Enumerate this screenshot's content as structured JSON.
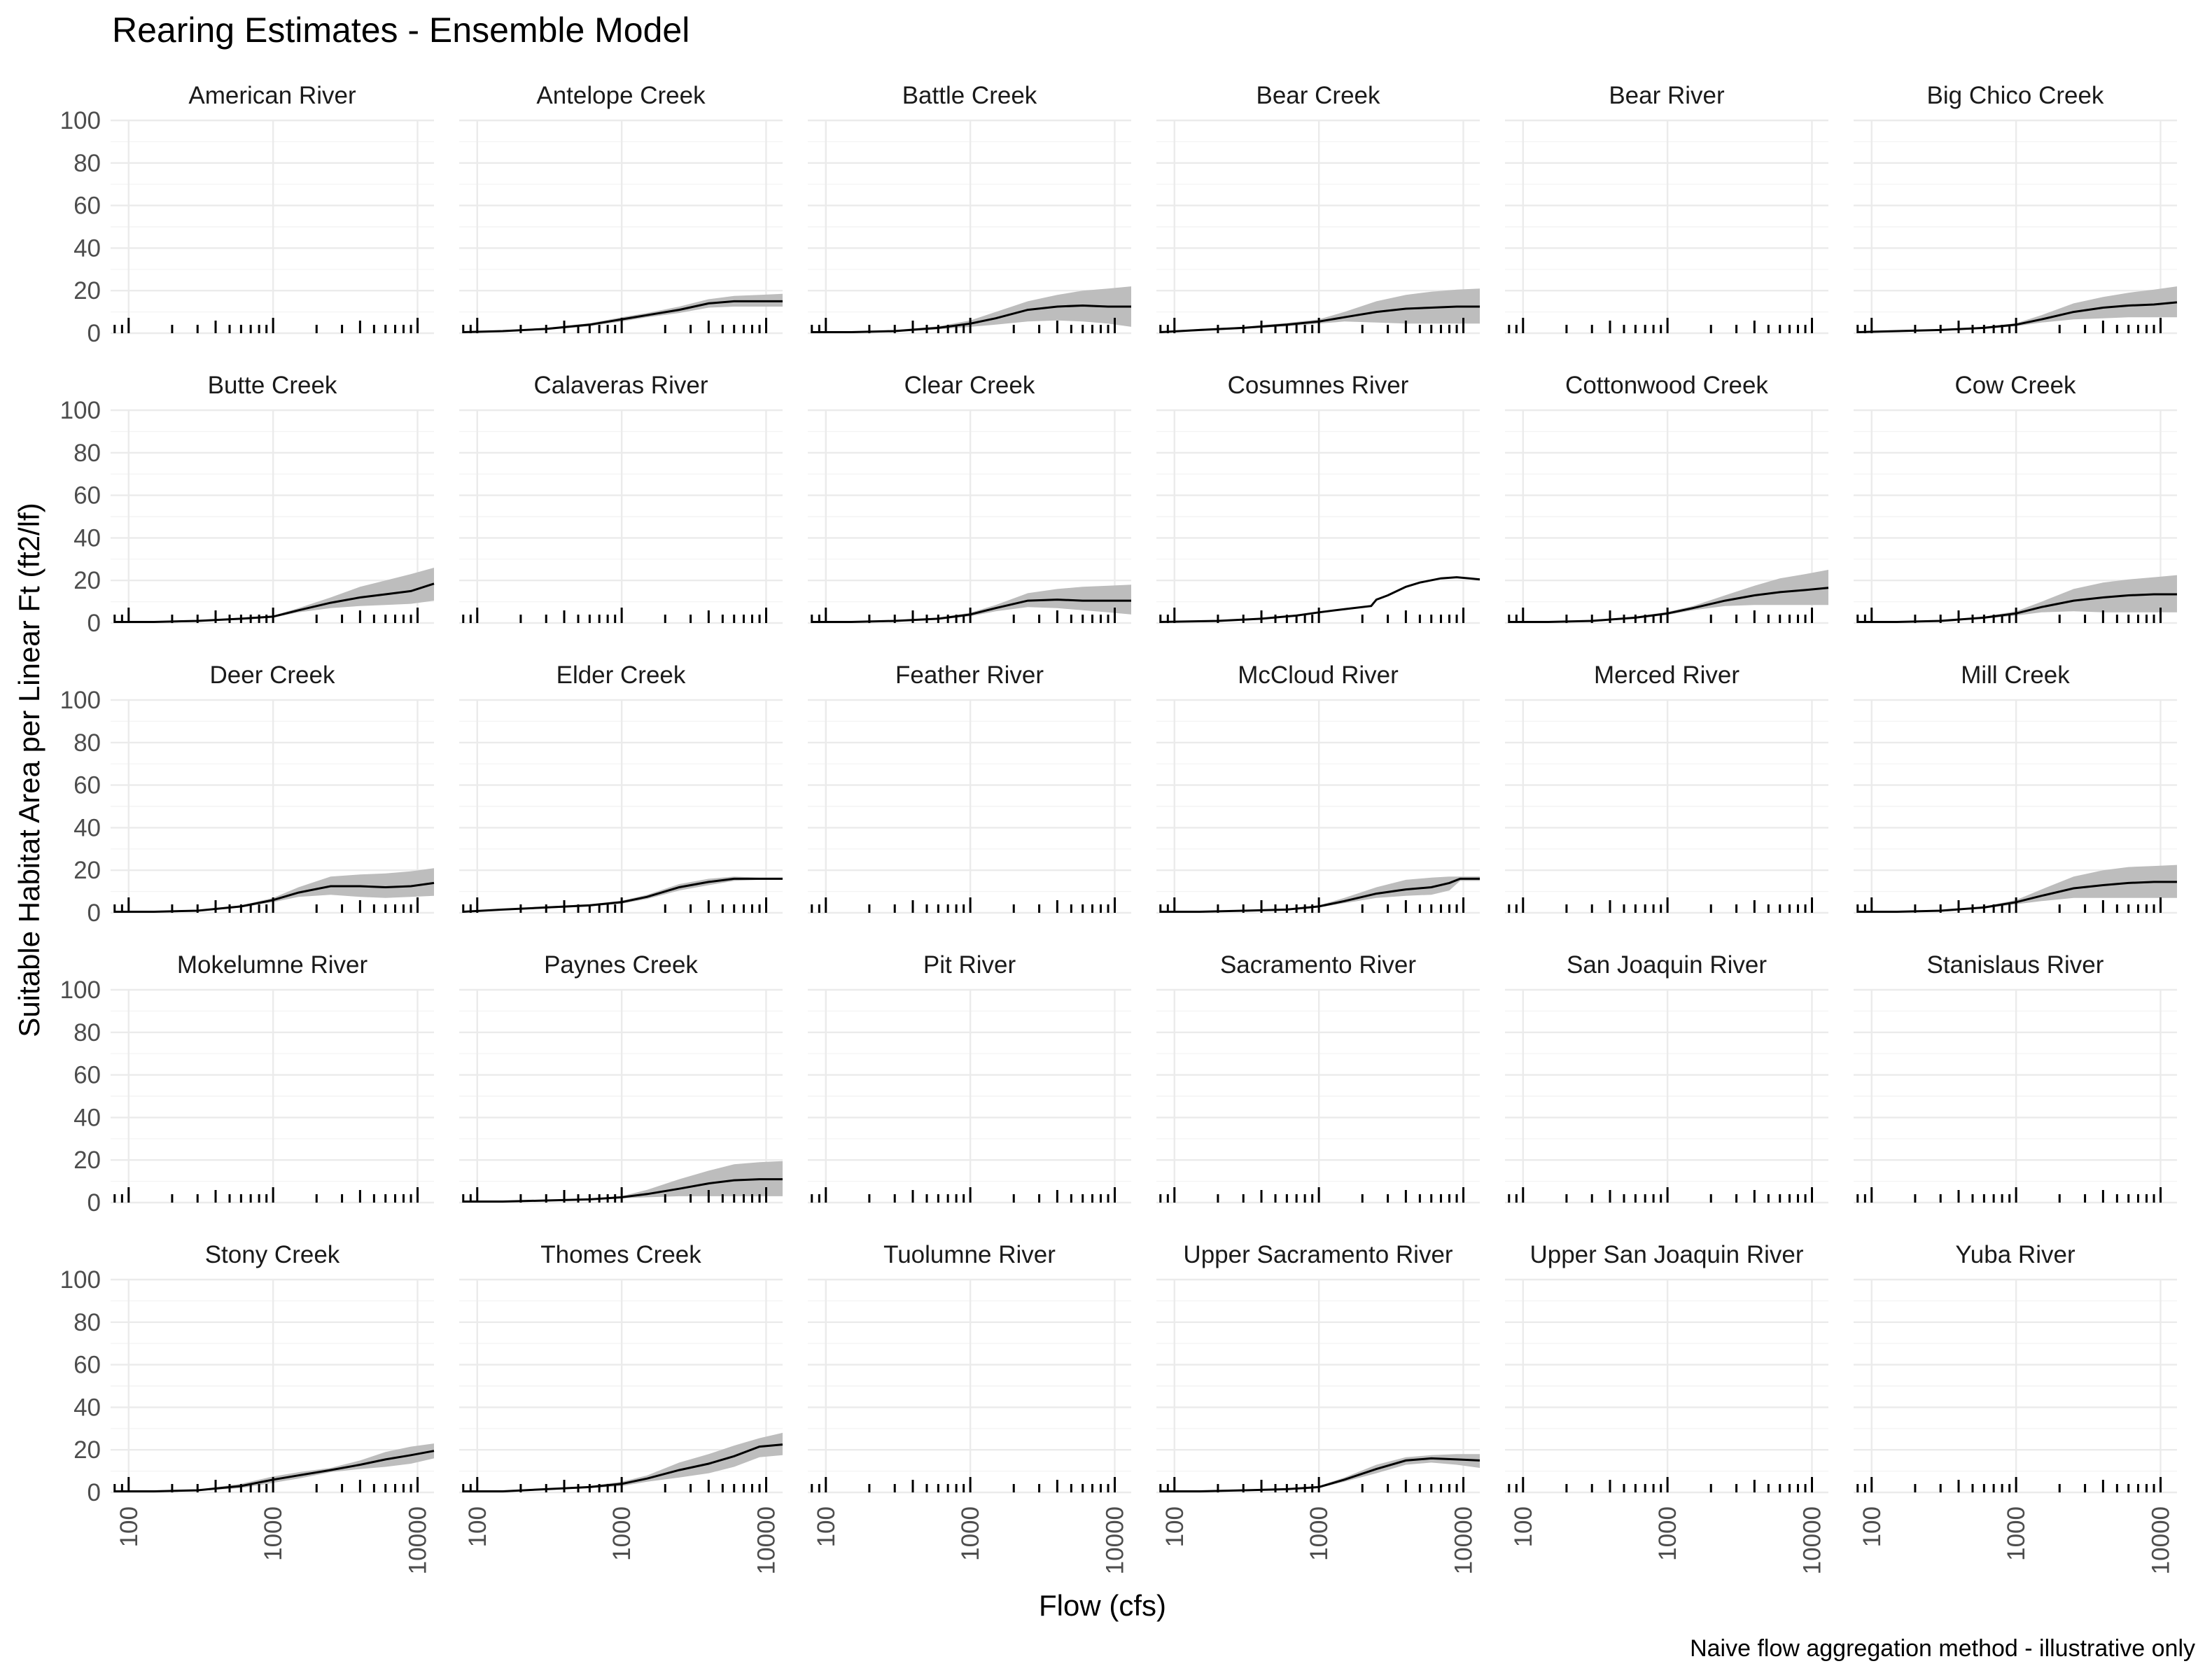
{
  "chart_data": {
    "type": "line",
    "title": "Rearing Estimates - Ensemble Model",
    "xlabel": "Flow (cfs)",
    "ylabel": "Suitable Habitat Area per Linear Ft (ft2/lf)",
    "caption": "Naive flow aggregation method - illustrative only",
    "x_scale": "log10",
    "xlim": [
      75,
      13000
    ],
    "ylim": [
      0,
      100
    ],
    "x_ticks": [
      "100",
      "1000",
      "10000"
    ],
    "y_ticks": [
      "0",
      "20",
      "40",
      "60",
      "80",
      "100"
    ],
    "grid": true,
    "rug": "x-axis rug showing flow observations in each panel",
    "panels": [
      {
        "name": "American River",
        "x": [],
        "y": [],
        "lo": [],
        "hi": []
      },
      {
        "name": "Antelope Creek",
        "x": [
          80,
          150,
          300,
          600,
          1000,
          1500,
          2500,
          4000,
          6000,
          9000,
          13000
        ],
        "y": [
          0.5,
          1,
          2,
          4,
          6.5,
          8.5,
          11,
          14,
          15,
          15,
          15
        ],
        "lo": [
          0.3,
          0.7,
          1.5,
          3.3,
          5.5,
          7.5,
          9.5,
          12,
          12.5,
          12.5,
          12.5
        ],
        "hi": [
          0.7,
          1.3,
          2.5,
          4.7,
          7.5,
          9.5,
          12.5,
          16,
          17.5,
          18,
          18.5
        ]
      },
      {
        "name": "Battle Creek",
        "x": [
          80,
          150,
          300,
          600,
          1000,
          1500,
          2500,
          4000,
          6000,
          9000,
          13000
        ],
        "y": [
          0.5,
          0.5,
          1,
          2.5,
          4.5,
          7,
          11,
          12.5,
          13,
          12.5,
          12.5
        ],
        "lo": [
          0.3,
          0.3,
          0.7,
          1.8,
          3,
          4,
          5.5,
          6,
          5.5,
          4.5,
          3
        ],
        "hi": [
          0.7,
          0.7,
          1.5,
          3.2,
          6,
          10,
          15,
          18,
          20,
          21,
          22
        ]
      },
      {
        "name": "Bear Creek",
        "x": [
          80,
          150,
          300,
          600,
          1000,
          1500,
          2500,
          4000,
          6000,
          9000,
          13000
        ],
        "y": [
          0.5,
          1.5,
          2.5,
          4,
          5.5,
          7.5,
          10,
          11.5,
          12,
          12.5,
          12.5
        ],
        "lo": [
          0.3,
          1,
          2,
          3.2,
          4.5,
          5.5,
          5,
          4.5,
          4.5,
          4.5,
          4.5
        ],
        "hi": [
          0.7,
          2,
          3,
          4.8,
          6.5,
          10,
          15,
          18,
          19.5,
          20.5,
          21
        ]
      },
      {
        "name": "Bear River",
        "x": [],
        "y": [],
        "lo": [],
        "hi": []
      },
      {
        "name": "Big Chico Creek",
        "x": [
          80,
          150,
          300,
          600,
          1000,
          1500,
          2500,
          4000,
          6000,
          9000,
          13000
        ],
        "y": [
          0.5,
          1,
          1.5,
          2.5,
          4,
          6.5,
          10,
          12,
          13,
          13.5,
          14.5
        ],
        "lo": [
          0.3,
          0.7,
          1.2,
          2,
          3.3,
          5,
          6.5,
          7,
          7.5,
          7.5,
          7.5
        ],
        "hi": [
          0.7,
          1.3,
          1.8,
          3,
          4.7,
          8.5,
          14,
          17,
          19,
          20.5,
          22
        ]
      },
      {
        "name": "Butte Creek",
        "x": [
          80,
          150,
          300,
          600,
          1000,
          1500,
          2500,
          4000,
          6000,
          9000,
          13000
        ],
        "y": [
          0.5,
          0.5,
          1,
          2,
          3,
          6,
          9.5,
          12,
          13.5,
          15,
          18.5
        ],
        "lo": [
          0.3,
          0.3,
          0.7,
          1.5,
          2.5,
          5,
          7,
          8,
          8.5,
          9,
          10.5
        ],
        "hi": [
          0.7,
          0.7,
          1.3,
          2.5,
          3.5,
          7,
          12,
          17,
          20,
          23,
          26
        ]
      },
      {
        "name": "Calaveras River",
        "x": [],
        "y": [],
        "lo": [],
        "hi": []
      },
      {
        "name": "Clear Creek",
        "x": [
          80,
          150,
          300,
          600,
          1000,
          1500,
          2500,
          4000,
          6000,
          9000,
          13000
        ],
        "y": [
          0.5,
          0.5,
          1,
          2,
          4,
          7,
          10.5,
          11,
          10.5,
          10.5,
          10.5
        ],
        "lo": [
          0.3,
          0.3,
          0.7,
          1.5,
          3.2,
          5.5,
          7.5,
          7,
          6,
          5,
          4
        ],
        "hi": [
          0.7,
          0.7,
          1.3,
          2.5,
          4.8,
          8.5,
          14,
          16,
          17,
          17.5,
          18
        ]
      },
      {
        "name": "Cosumnes River",
        "x": [
          80,
          200,
          400,
          700,
          1000,
          1500,
          2300,
          2500,
          3000,
          4000,
          5000,
          7000,
          9000,
          11000,
          13000
        ],
        "y": [
          0.5,
          1,
          2,
          3.5,
          5,
          6.5,
          8,
          11,
          13,
          17,
          19,
          21,
          21.5,
          21,
          20.5
        ],
        "lo": [
          0.4,
          0.8,
          1.8,
          3.3,
          4.8,
          6.3,
          7.8,
          10.8,
          12.8,
          16.8,
          18.8,
          20.8,
          21.3,
          20.8,
          20.3
        ],
        "hi": [
          0.6,
          1.2,
          2.2,
          3.7,
          5.2,
          6.7,
          8.2,
          11.2,
          13.2,
          17.2,
          19.2,
          21.2,
          21.7,
          21.2,
          20.7
        ]
      },
      {
        "name": "Cottonwood Creek",
        "x": [
          80,
          150,
          300,
          600,
          1000,
          1500,
          2500,
          4000,
          6000,
          9000,
          13000
        ],
        "y": [
          0.5,
          0.5,
          1,
          2.5,
          4.5,
          7,
          10.5,
          13,
          14.5,
          15.5,
          16.5
        ],
        "lo": [
          0.3,
          0.3,
          0.7,
          2,
          3.8,
          6,
          8,
          8.5,
          8.5,
          8.5,
          8.5
        ],
        "hi": [
          0.7,
          0.7,
          1.3,
          3,
          5.2,
          8,
          13,
          17.5,
          21,
          23,
          25
        ]
      },
      {
        "name": "Cow Creek",
        "x": [
          80,
          150,
          300,
          600,
          1000,
          1500,
          2500,
          4000,
          6000,
          9000,
          13000
        ],
        "y": [
          0.5,
          0.5,
          1,
          2.5,
          4.5,
          7.5,
          10.5,
          12,
          13,
          13.5,
          13.5
        ],
        "lo": [
          0.3,
          0.3,
          0.7,
          2,
          3.5,
          5,
          5.5,
          5,
          5,
          5,
          5
        ],
        "hi": [
          0.7,
          0.7,
          1.3,
          3,
          5.5,
          10,
          16,
          19,
          20.5,
          21.5,
          22.5
        ]
      },
      {
        "name": "Deer Creek",
        "x": [
          80,
          150,
          300,
          600,
          1000,
          1500,
          2500,
          4000,
          6000,
          9000,
          13000
        ],
        "y": [
          0.5,
          0.5,
          1,
          3,
          6,
          9.5,
          12.5,
          12.5,
          12,
          12.5,
          14
        ],
        "lo": [
          0.3,
          0.3,
          0.7,
          2.5,
          5,
          7.5,
          8.5,
          7.5,
          7,
          7.5,
          8
        ],
        "hi": [
          0.7,
          0.7,
          1.3,
          3.5,
          7,
          12,
          17,
          18,
          18.5,
          19.5,
          21
        ]
      },
      {
        "name": "Elder Creek",
        "x": [
          80,
          150,
          300,
          600,
          1000,
          1500,
          2500,
          4000,
          6000,
          9000,
          13000
        ],
        "y": [
          0.5,
          1.5,
          2.5,
          3.5,
          5,
          7.5,
          12,
          14.5,
          16,
          16,
          16
        ],
        "lo": [
          0.3,
          1.2,
          2,
          3,
          4.3,
          6.5,
          10.5,
          13,
          15,
          15.5,
          15.5
        ],
        "hi": [
          0.7,
          1.8,
          3,
          4,
          5.7,
          8.5,
          13.5,
          16,
          17,
          16.5,
          16.5
        ]
      },
      {
        "name": "Feather River",
        "x": [],
        "y": [],
        "lo": [],
        "hi": []
      },
      {
        "name": "McCloud River",
        "x": [
          80,
          150,
          300,
          600,
          1000,
          1500,
          2500,
          4000,
          6000,
          8000,
          9500,
          11000,
          13000
        ],
        "y": [
          0.5,
          0.5,
          1,
          1.5,
          3,
          5.5,
          9,
          11,
          12,
          14,
          16,
          16,
          16
        ],
        "lo": [
          0.3,
          0.3,
          0.7,
          1.2,
          2.5,
          4.5,
          7,
          8,
          8.5,
          10.5,
          15,
          15,
          15
        ],
        "hi": [
          0.7,
          0.7,
          1.3,
          1.8,
          3.5,
          7,
          12,
          15.5,
          16.5,
          17,
          17,
          17,
          17
        ]
      },
      {
        "name": "Merced River",
        "x": [],
        "y": [],
        "lo": [],
        "hi": []
      },
      {
        "name": "Mill Creek",
        "x": [
          80,
          150,
          300,
          600,
          1000,
          1500,
          2500,
          4000,
          6000,
          9000,
          13000
        ],
        "y": [
          0.5,
          0.5,
          1,
          2.5,
          5,
          8,
          11.5,
          13,
          14,
          14.5,
          14.5
        ],
        "lo": [
          0.3,
          0.3,
          0.7,
          2,
          4,
          5.5,
          7,
          7,
          7,
          7,
          7
        ],
        "hi": [
          0.7,
          0.7,
          1.3,
          3,
          6,
          11,
          17,
          20,
          21.5,
          22,
          22.5
        ]
      },
      {
        "name": "Mokelumne River",
        "x": [],
        "y": [],
        "lo": [],
        "hi": []
      },
      {
        "name": "Paynes Creek",
        "x": [
          80,
          150,
          300,
          600,
          1000,
          1500,
          2500,
          4000,
          6000,
          9000,
          13000
        ],
        "y": [
          0.5,
          0.5,
          1,
          1.5,
          2.5,
          4,
          6.5,
          9,
          10.5,
          11,
          11
        ],
        "lo": [
          0.3,
          0.3,
          0.7,
          1.2,
          2,
          2.5,
          3,
          3,
          3,
          3,
          3
        ],
        "hi": [
          0.7,
          0.7,
          1.3,
          1.8,
          3,
          6,
          11,
          15,
          18,
          19,
          19.5
        ]
      },
      {
        "name": "Pit River",
        "x": [],
        "y": [],
        "lo": [],
        "hi": []
      },
      {
        "name": "Sacramento River",
        "x": [],
        "y": [],
        "lo": [],
        "hi": []
      },
      {
        "name": "San Joaquin River",
        "x": [],
        "y": [],
        "lo": [],
        "hi": []
      },
      {
        "name": "Stanislaus River",
        "x": [],
        "y": [],
        "lo": [],
        "hi": []
      },
      {
        "name": "Stony Creek",
        "x": [
          80,
          150,
          300,
          600,
          1000,
          1500,
          2500,
          4000,
          6000,
          9000,
          13000
        ],
        "y": [
          0.5,
          0.5,
          1,
          3,
          6,
          8,
          10.5,
          13,
          15.5,
          17.5,
          19.5
        ],
        "lo": [
          0.3,
          0.3,
          0.7,
          2,
          4.5,
          6.5,
          9.5,
          11,
          12,
          13.5,
          16
        ],
        "hi": [
          0.7,
          0.7,
          1.3,
          4,
          7.5,
          9.5,
          11.5,
          15,
          19,
          21.5,
          23
        ]
      },
      {
        "name": "Thomes Creek",
        "x": [
          80,
          150,
          300,
          600,
          1000,
          1500,
          2500,
          4000,
          6000,
          9000,
          13000
        ],
        "y": [
          0.5,
          0.5,
          1.5,
          2.5,
          4,
          6.5,
          10.5,
          13.5,
          17,
          21.5,
          22.5
        ],
        "lo": [
          0.3,
          0.3,
          1.2,
          2,
          3,
          5,
          7,
          9,
          12,
          16.5,
          17.5
        ],
        "hi": [
          0.7,
          0.7,
          1.8,
          3,
          5,
          8,
          14,
          18,
          22,
          25.5,
          28
        ]
      },
      {
        "name": "Tuolumne River",
        "x": [],
        "y": [],
        "lo": [],
        "hi": []
      },
      {
        "name": "Upper Sacramento River",
        "x": [
          80,
          150,
          300,
          600,
          1000,
          1500,
          2500,
          4000,
          6000,
          9000,
          13000
        ],
        "y": [
          0.5,
          0.5,
          1,
          1.5,
          2.5,
          6,
          11,
          15,
          16,
          15.5,
          15
        ],
        "lo": [
          0.3,
          0.3,
          0.7,
          1.2,
          2,
          5,
          9,
          13,
          14,
          13,
          11.5
        ],
        "hi": [
          0.7,
          0.7,
          1.3,
          1.8,
          3,
          7,
          13,
          16.5,
          17.5,
          18,
          18
        ]
      },
      {
        "name": "Upper San Joaquin River",
        "x": [],
        "y": [],
        "lo": [],
        "hi": []
      },
      {
        "name": "Yuba River",
        "x": [],
        "y": [],
        "lo": [],
        "hi": []
      }
    ]
  }
}
